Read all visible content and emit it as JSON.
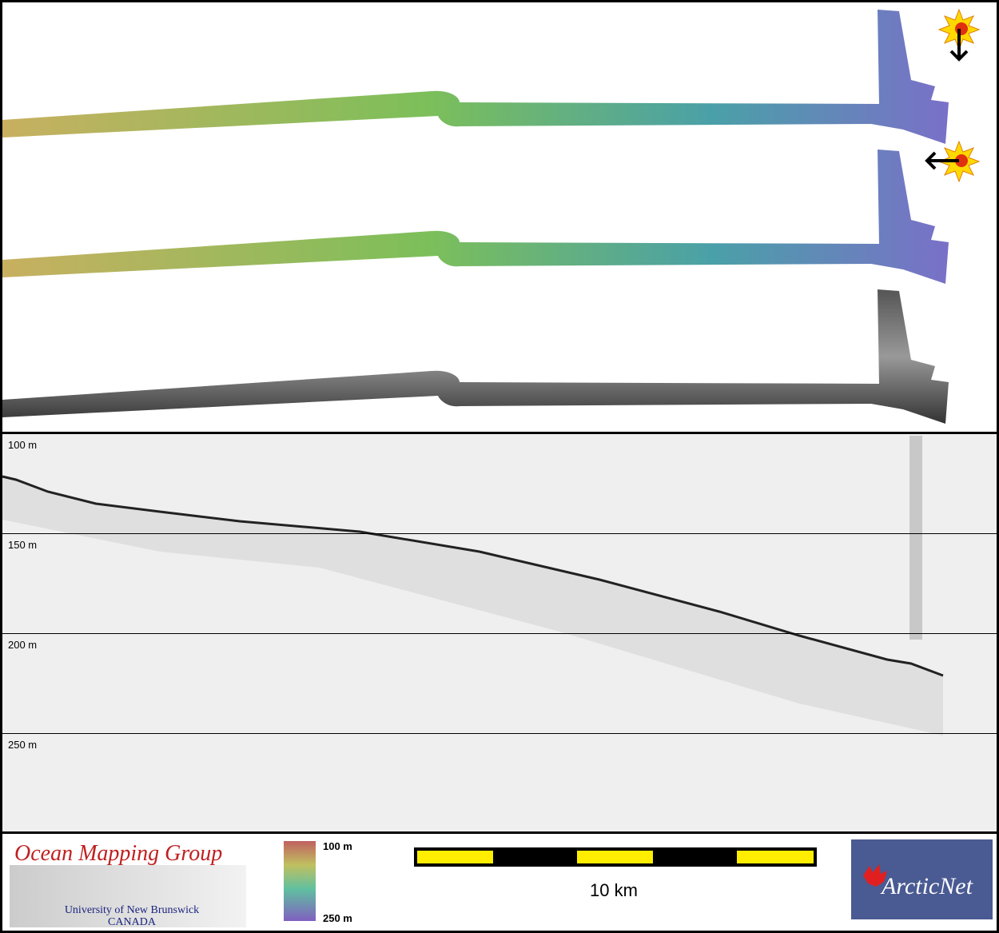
{
  "profile": {
    "depth_labels": [
      "100 m",
      "150 m",
      "200 m",
      "250 m"
    ]
  },
  "footer": {
    "group_title": "Ocean Mapping Group",
    "university": "University of New Brunswick",
    "country": "CANADA",
    "colorbar_top": "100 m",
    "colorbar_bottom": "250 m",
    "scale_label": "10 km",
    "partner_logo": "ArcticNet"
  }
}
